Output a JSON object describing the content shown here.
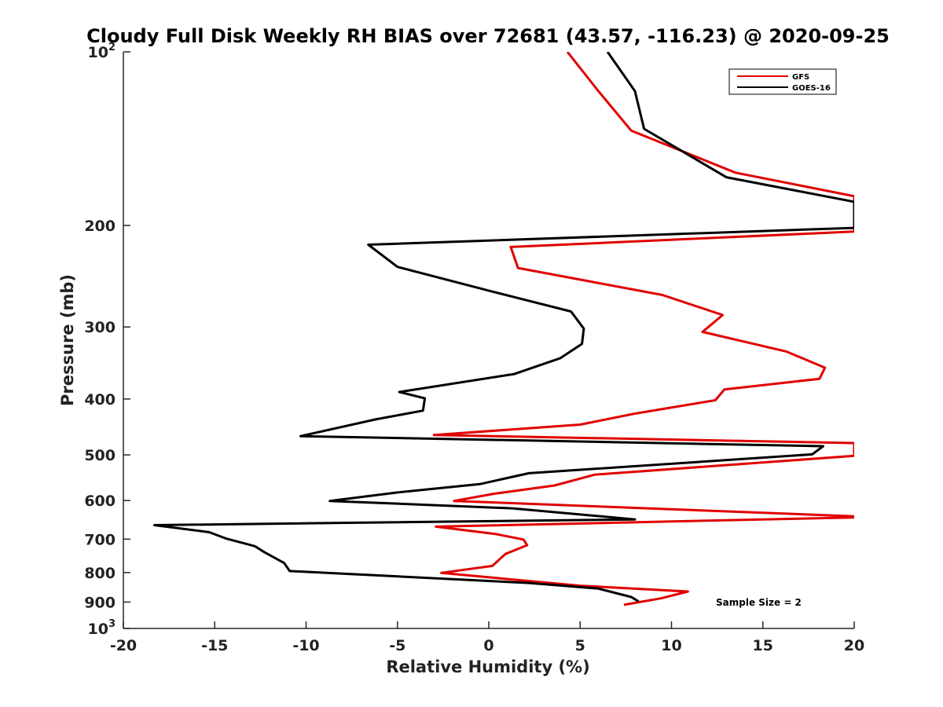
{
  "chart_data": {
    "type": "line",
    "title": "Cloudy Full Disk Weekly RH BIAS over 72681 (43.57, -116.23) @ 2020-09-25",
    "xlabel": "Relative Humidity (%)",
    "ylabel": "Pressure (mb)",
    "xlim": [
      -20,
      20
    ],
    "ylim": [
      100,
      1000
    ],
    "y_scale": "log",
    "y_reversed": true,
    "grid": false,
    "legend_position": "top-right",
    "x_ticks": [
      "-20",
      "-15",
      "-10",
      "-5",
      "0",
      "5",
      "10",
      "15",
      "20"
    ],
    "y_ticks": [
      {
        "value": 100,
        "base": "10",
        "exp": "2"
      },
      {
        "value": 200,
        "label": "200"
      },
      {
        "value": 300,
        "label": "300"
      },
      {
        "value": 400,
        "label": "400"
      },
      {
        "value": 500,
        "label": "500"
      },
      {
        "value": 600,
        "label": "600"
      },
      {
        "value": 700,
        "label": "700"
      },
      {
        "value": 800,
        "label": "800"
      },
      {
        "value": 900,
        "label": "900"
      },
      {
        "value": 1000,
        "base": "10",
        "exp": "3"
      }
    ],
    "annotation": "Sample Size = 2",
    "series": [
      {
        "name": "GFS",
        "color": "#e00000",
        "points": [
          [
            4.3,
            100
          ],
          [
            6.0,
            117
          ],
          [
            7.8,
            137
          ],
          [
            13.5,
            162
          ],
          [
            20,
            178
          ],
          [
            20,
            205
          ],
          [
            1.2,
            218
          ],
          [
            1.6,
            237
          ],
          [
            9.5,
            264
          ],
          [
            12.8,
            286
          ],
          [
            11.7,
            306
          ],
          [
            16.3,
            331
          ],
          [
            18.4,
            353
          ],
          [
            18.1,
            369
          ],
          [
            12.9,
            385
          ],
          [
            12.4,
            402
          ],
          [
            8.0,
            424
          ],
          [
            5.0,
            443
          ],
          [
            -3.0,
            462
          ],
          [
            20,
            477
          ],
          [
            20,
            502
          ],
          [
            5.8,
            541
          ],
          [
            3.6,
            565
          ],
          [
            0.3,
            584
          ],
          [
            -1.9,
            601
          ],
          [
            20,
            639
          ],
          [
            20,
            642
          ],
          [
            -2.9,
            666
          ],
          [
            0.4,
            686
          ],
          [
            1.9,
            701
          ],
          [
            2.1,
            717
          ],
          [
            0.9,
            743
          ],
          [
            0.2,
            779
          ],
          [
            -2.6,
            801
          ],
          [
            5.0,
            843
          ],
          [
            10.9,
            863
          ],
          [
            9.4,
            887
          ],
          [
            7.4,
            910
          ]
        ]
      },
      {
        "name": "GOES-16",
        "color": "#000000",
        "points": [
          [
            6.5,
            100
          ],
          [
            8.0,
            117
          ],
          [
            8.5,
            136
          ],
          [
            13.0,
            165
          ],
          [
            20,
            182
          ],
          [
            20,
            202
          ],
          [
            -6.6,
            216
          ],
          [
            -5.0,
            236
          ],
          [
            0.3,
            261
          ],
          [
            4.5,
            282
          ],
          [
            5.2,
            302
          ],
          [
            5.1,
            321
          ],
          [
            3.9,
            340
          ],
          [
            1.4,
            362
          ],
          [
            -4.9,
            389
          ],
          [
            -3.5,
            399
          ],
          [
            -3.6,
            419
          ],
          [
            -6.2,
            434
          ],
          [
            -10.3,
            464
          ],
          [
            18.3,
            483
          ],
          [
            17.7,
            499
          ],
          [
            2.2,
            538
          ],
          [
            -0.5,
            562
          ],
          [
            -5.0,
            581
          ],
          [
            -8.7,
            601
          ],
          [
            1.3,
            619
          ],
          [
            8.0,
            647
          ],
          [
            -18.3,
            662
          ],
          [
            -15.3,
            681
          ],
          [
            -14.4,
            698
          ],
          [
            -12.8,
            720
          ],
          [
            -12.3,
            737
          ],
          [
            -11.2,
            770
          ],
          [
            -10.9,
            795
          ],
          [
            2.2,
            834
          ],
          [
            6.0,
            853
          ],
          [
            7.8,
            882
          ],
          [
            8.2,
            898
          ]
        ]
      }
    ]
  }
}
